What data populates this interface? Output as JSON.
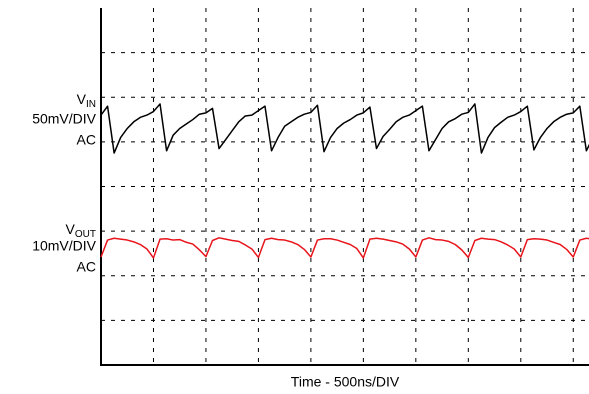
{
  "chart_data": {
    "type": "line",
    "xlabel": "Time - 500ns/DIV",
    "channel_labels": [
      {
        "symbol": "V",
        "sub": "IN",
        "scale": "50mV/DIV",
        "coupling": "AC"
      },
      {
        "symbol": "V",
        "sub": "OUT",
        "scale": "10mV/DIV",
        "coupling": "AC"
      }
    ],
    "xlim": [
      0,
      9.3
    ],
    "ylim": [
      0,
      8
    ],
    "xticks": [
      1,
      2,
      3,
      4,
      5,
      6,
      7,
      8,
      9
    ],
    "yticks": [
      1,
      2,
      3,
      4,
      5,
      6,
      7
    ],
    "grid": true,
    "x": [
      0,
      0.125,
      0.25,
      0.375,
      0.5,
      0.625,
      0.75,
      0.875,
      1,
      1.125,
      1.25,
      1.375,
      1.5,
      1.625,
      1.75,
      1.875,
      2,
      2.125,
      2.25,
      2.375,
      2.5,
      2.625,
      2.75,
      2.875,
      3,
      3.125,
      3.25,
      3.375,
      3.5,
      3.625,
      3.75,
      3.875,
      4,
      4.125,
      4.25,
      4.375,
      4.5,
      4.625,
      4.75,
      4.875,
      5,
      5.125,
      5.25,
      5.375,
      5.5,
      5.625,
      5.75,
      5.875,
      6,
      6.125,
      6.25,
      6.375,
      6.5,
      6.625,
      6.75,
      6.875,
      7,
      7.125,
      7.25,
      7.375,
      7.5,
      7.625,
      7.75,
      7.875,
      8,
      8.125,
      8.25,
      8.375,
      8.5,
      8.625,
      8.75,
      8.875,
      9,
      9.125,
      9.25,
      9.375
    ],
    "series": [
      {
        "color": "#000000",
        "values": [
          5.6,
          5.8,
          4.75,
          5.1,
          5.3,
          5.45,
          5.55,
          5.6,
          5.68,
          5.85,
          4.8,
          5.15,
          5.3,
          5.4,
          5.5,
          5.62,
          5.65,
          5.75,
          4.85,
          5.05,
          5.25,
          5.45,
          5.58,
          5.6,
          5.7,
          5.8,
          4.8,
          5.1,
          5.35,
          5.45,
          5.55,
          5.62,
          5.66,
          5.82,
          4.78,
          5.1,
          5.3,
          5.42,
          5.5,
          5.6,
          5.65,
          5.78,
          4.85,
          5.12,
          5.28,
          5.45,
          5.55,
          5.6,
          5.7,
          5.8,
          4.8,
          5.05,
          5.3,
          5.45,
          5.52,
          5.62,
          5.66,
          5.85,
          4.75,
          5.1,
          5.32,
          5.44,
          5.55,
          5.6,
          5.68,
          5.8,
          4.82,
          5.1,
          5.3,
          5.45,
          5.55,
          5.62,
          5.65,
          5.8,
          4.8,
          5.1
        ]
      },
      {
        "color": "#e8141b",
        "values": [
          2.42,
          2.8,
          2.84,
          2.82,
          2.8,
          2.76,
          2.7,
          2.6,
          2.4,
          2.82,
          2.83,
          2.8,
          2.81,
          2.75,
          2.71,
          2.58,
          2.43,
          2.79,
          2.85,
          2.82,
          2.79,
          2.77,
          2.69,
          2.6,
          2.41,
          2.81,
          2.84,
          2.81,
          2.8,
          2.76,
          2.7,
          2.59,
          2.42,
          2.8,
          2.83,
          2.83,
          2.8,
          2.75,
          2.7,
          2.61,
          2.4,
          2.82,
          2.84,
          2.82,
          2.79,
          2.76,
          2.71,
          2.6,
          2.42,
          2.8,
          2.85,
          2.81,
          2.8,
          2.77,
          2.7,
          2.58,
          2.41,
          2.79,
          2.84,
          2.82,
          2.81,
          2.76,
          2.69,
          2.6,
          2.42,
          2.81,
          2.83,
          2.82,
          2.8,
          2.75,
          2.7,
          2.59,
          2.42,
          2.8,
          2.84,
          2.82
        ]
      }
    ]
  }
}
